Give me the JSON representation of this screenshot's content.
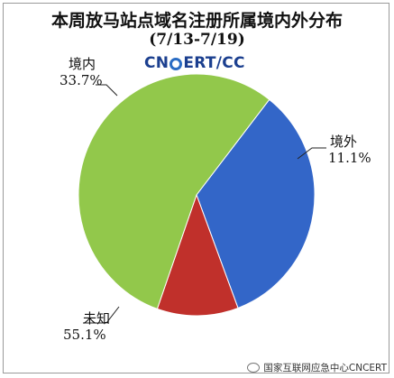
{
  "chart_data": {
    "type": "pie",
    "title": "本周放马站点域名注册所属境内外分布",
    "subtitle": "(7/13-7/19)",
    "slices": [
      {
        "name": "境内",
        "value": 33.7,
        "value_label": "33.7%",
        "color": "#3366c8"
      },
      {
        "name": "境外",
        "value": 11.1,
        "value_label": "11.1%",
        "color": "#c0302b"
      },
      {
        "name": "未知",
        "value": 55.1,
        "value_label": "55.1%",
        "color": "#92c84b"
      }
    ],
    "start_angle_deg": -52,
    "legend": "none"
  },
  "logo": {
    "part1": "CN",
    "part2": "ERT/CC"
  },
  "watermark": {
    "text": "国家互联网应急中心CNCERT"
  }
}
